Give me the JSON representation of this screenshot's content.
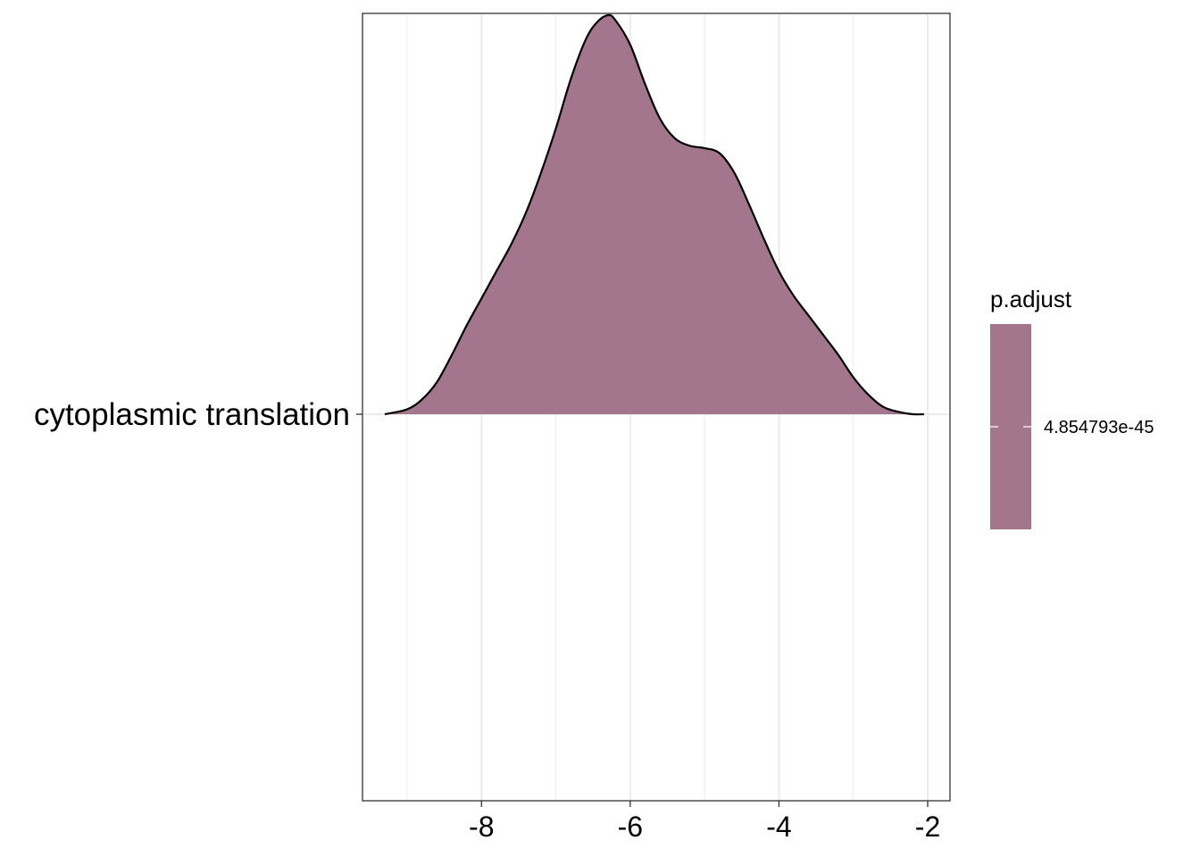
{
  "chart_data": {
    "type": "area",
    "subtype": "ridgeline-density",
    "title": "",
    "xlabel": "",
    "ylabel": "",
    "xlim": [
      -9.6,
      -1.7
    ],
    "x_ticks": [
      -8,
      -6,
      -4,
      -2
    ],
    "x_tick_labels": [
      "-8",
      "-6",
      "-4",
      "-2"
    ],
    "grid": true,
    "legend_position": "right",
    "categories": [
      "cytoplasmic translation"
    ],
    "series": [
      {
        "name": "cytoplasmic translation",
        "fill_value": 4.854793e-45,
        "density": {
          "x": [
            -9.3,
            -9.0,
            -8.8,
            -8.6,
            -8.4,
            -8.2,
            -8.0,
            -7.8,
            -7.6,
            -7.4,
            -7.2,
            -7.0,
            -6.8,
            -6.6,
            -6.45,
            -6.3,
            -6.2,
            -6.0,
            -5.8,
            -5.6,
            -5.4,
            -5.2,
            -5.0,
            -4.8,
            -4.6,
            -4.4,
            -4.2,
            -4.0,
            -3.8,
            -3.6,
            -3.4,
            -3.2,
            -3.0,
            -2.8,
            -2.6,
            -2.4,
            -2.2,
            -2.05
          ],
          "y": [
            0.0,
            0.02,
            0.06,
            0.13,
            0.24,
            0.36,
            0.47,
            0.58,
            0.69,
            0.82,
            0.98,
            1.16,
            1.36,
            1.52,
            1.59,
            1.62,
            1.6,
            1.5,
            1.34,
            1.2,
            1.12,
            1.09,
            1.08,
            1.06,
            0.98,
            0.85,
            0.71,
            0.58,
            0.48,
            0.4,
            0.32,
            0.24,
            0.15,
            0.08,
            0.03,
            0.01,
            0.0,
            0.0
          ]
        }
      }
    ],
    "legend": {
      "title": "p.adjust",
      "labels": [
        "4.854793e-45"
      ],
      "values": [
        4.854793e-45
      ]
    }
  },
  "colors": {
    "fill": "#a3768e",
    "outline": "#000000",
    "grid": "#ebebeb",
    "panel_border": "#333333"
  }
}
